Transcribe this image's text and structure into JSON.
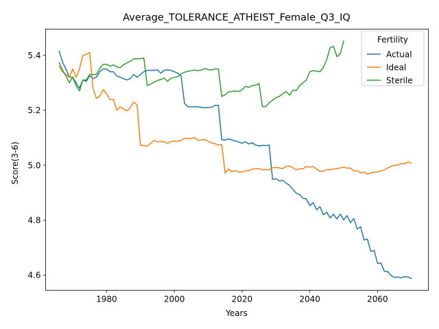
{
  "chart_data": {
    "type": "line",
    "title": "Average_TOLERANCE_ATHEIST_Female_Q3_IQ",
    "xlabel": "Years",
    "ylabel": "Score(3-6)",
    "xlim": [
      1962,
      2075
    ],
    "ylim": [
      4.545,
      5.495
    ],
    "xticks": [
      1980,
      2000,
      2020,
      2040,
      2060
    ],
    "yticks": [
      4.6,
      4.8,
      5.0,
      5.2,
      5.4
    ],
    "xtick_labels": [
      "1980",
      "2000",
      "2020",
      "2040",
      "2060"
    ],
    "ytick_labels": [
      "4.6",
      "4.8",
      "5.0",
      "5.2",
      "5.4"
    ],
    "grid": false,
    "legend": {
      "title": "Fertility",
      "placement": "top-right"
    },
    "series": [
      {
        "name": "Actual",
        "color": "#1f77b4",
        "x": [
          1966,
          1967,
          1968,
          1969,
          1970,
          1971,
          1972,
          1973,
          1974,
          1975,
          1976,
          1977,
          1978,
          1979,
          1980,
          1981,
          1982,
          1983,
          1984,
          1985,
          1986,
          1987,
          1988,
          1989,
          1990,
          1991,
          1992,
          1993,
          1994,
          1995,
          1996,
          1997,
          1998,
          1999,
          2000,
          2001,
          2002,
          2003,
          2004,
          2005,
          2006,
          2007,
          2008,
          2009,
          2010,
          2011,
          2012,
          2013,
          2014,
          2015,
          2016,
          2017,
          2018,
          2019,
          2020,
          2021,
          2022,
          2023,
          2024,
          2025,
          2026,
          2027,
          2028,
          2029,
          2030,
          2031,
          2032,
          2033,
          2034,
          2035,
          2036,
          2037,
          2038,
          2039,
          2040,
          2041,
          2042,
          2043,
          2044,
          2045,
          2046,
          2047,
          2048,
          2049,
          2050,
          2051,
          2052,
          2053,
          2054,
          2055,
          2056,
          2057,
          2058,
          2059,
          2060,
          2061,
          2062,
          2063,
          2064,
          2065,
          2066,
          2067,
          2068,
          2069,
          2070
        ],
        "values": [
          5.415,
          5.375,
          5.35,
          5.32,
          5.32,
          5.3,
          5.28,
          5.31,
          5.305,
          5.325,
          5.315,
          5.32,
          5.34,
          5.35,
          5.35,
          5.34,
          5.34,
          5.325,
          5.32,
          5.315,
          5.31,
          5.315,
          5.33,
          5.32,
          5.33,
          5.34,
          5.345,
          5.345,
          5.345,
          5.347,
          5.335,
          5.345,
          5.347,
          5.345,
          5.34,
          5.335,
          5.325,
          5.225,
          5.213,
          5.212,
          5.213,
          5.212,
          5.21,
          5.209,
          5.21,
          5.211,
          5.218,
          5.218,
          5.093,
          5.091,
          5.096,
          5.092,
          5.088,
          5.085,
          5.08,
          5.085,
          5.077,
          5.082,
          5.073,
          5.07,
          5.072,
          5.071,
          5.073,
          4.948,
          4.951,
          4.943,
          4.945,
          4.935,
          4.927,
          4.912,
          4.898,
          4.893,
          4.88,
          4.877,
          4.853,
          4.864,
          4.838,
          4.849,
          4.82,
          4.829,
          4.808,
          4.822,
          4.804,
          4.822,
          4.801,
          4.817,
          4.791,
          4.806,
          4.768,
          4.776,
          4.728,
          4.731,
          4.686,
          4.69,
          4.643,
          4.644,
          4.614,
          4.613,
          4.598,
          4.592,
          4.593,
          4.59,
          4.595,
          4.593,
          4.588
        ]
      },
      {
        "name": "Ideal",
        "color": "#ff7f0e",
        "x": [
          1966,
          1967,
          1968,
          1969,
          1970,
          1971,
          1972,
          1973,
          1974,
          1975,
          1976,
          1977,
          1978,
          1979,
          1980,
          1981,
          1982,
          1983,
          1984,
          1985,
          1986,
          1987,
          1988,
          1989,
          1990,
          1991,
          1992,
          1993,
          1994,
          1995,
          1996,
          1997,
          1998,
          1999,
          2000,
          2001,
          2002,
          2003,
          2004,
          2005,
          2006,
          2007,
          2008,
          2009,
          2010,
          2011,
          2012,
          2013,
          2014,
          2015,
          2016,
          2017,
          2018,
          2019,
          2020,
          2021,
          2022,
          2023,
          2024,
          2025,
          2026,
          2027,
          2028,
          2029,
          2030,
          2031,
          2032,
          2033,
          2034,
          2035,
          2036,
          2037,
          2038,
          2039,
          2040,
          2041,
          2042,
          2043,
          2044,
          2045,
          2046,
          2047,
          2048,
          2049,
          2050,
          2051,
          2052,
          2053,
          2054,
          2055,
          2056,
          2057,
          2058,
          2059,
          2060,
          2061,
          2062,
          2063,
          2064,
          2065,
          2066,
          2067,
          2068,
          2069,
          2070
        ],
        "values": [
          5.36,
          5.34,
          5.33,
          5.32,
          5.35,
          5.32,
          5.35,
          5.4,
          5.403,
          5.41,
          5.28,
          5.243,
          5.252,
          5.275,
          5.26,
          5.238,
          5.24,
          5.2,
          5.212,
          5.205,
          5.197,
          5.21,
          5.23,
          5.22,
          5.072,
          5.071,
          5.069,
          5.08,
          5.09,
          5.085,
          5.085,
          5.086,
          5.079,
          5.086,
          5.088,
          5.087,
          5.09,
          5.098,
          5.097,
          5.098,
          5.1,
          5.09,
          5.092,
          5.093,
          5.087,
          5.081,
          5.078,
          5.074,
          5.075,
          4.971,
          4.986,
          4.977,
          4.98,
          4.975,
          4.975,
          4.98,
          4.98,
          4.986,
          4.987,
          4.988,
          4.983,
          4.984,
          4.982,
          4.991,
          4.992,
          4.99,
          4.988,
          4.995,
          4.998,
          4.99,
          4.983,
          4.987,
          4.987,
          4.995,
          4.993,
          4.995,
          4.986,
          4.977,
          4.979,
          4.984,
          4.983,
          4.986,
          4.988,
          4.99,
          4.993,
          4.989,
          4.99,
          4.979,
          4.98,
          4.972,
          4.975,
          4.967,
          4.972,
          4.975,
          4.975,
          4.979,
          4.983,
          4.99,
          4.996,
          5.0,
          5.0,
          5.006,
          5.005,
          5.012,
          5.008
        ]
      },
      {
        "name": "Sterile",
        "color": "#2ca02c",
        "x": [
          1966,
          1967,
          1968,
          1969,
          1970,
          1971,
          1972,
          1973,
          1974,
          1975,
          1976,
          1977,
          1978,
          1979,
          1980,
          1981,
          1982,
          1983,
          1984,
          1985,
          1986,
          1987,
          1988,
          1989,
          1990,
          1991,
          1992,
          1993,
          1994,
          1995,
          1996,
          1997,
          1998,
          1999,
          2000,
          2001,
          2002,
          2003,
          2004,
          2005,
          2006,
          2007,
          2008,
          2009,
          2010,
          2011,
          2012,
          2013,
          2014,
          2015,
          2016,
          2017,
          2018,
          2019,
          2020,
          2021,
          2022,
          2023,
          2024,
          2025,
          2026,
          2027,
          2028,
          2029,
          2030,
          2031,
          2032,
          2033,
          2034,
          2035,
          2036,
          2037,
          2038,
          2039,
          2040,
          2041,
          2042,
          2043,
          2044,
          2045,
          2046,
          2047,
          2048,
          2049,
          2050
        ],
        "values": [
          5.373,
          5.345,
          5.325,
          5.3,
          5.32,
          5.29,
          5.27,
          5.31,
          5.31,
          5.33,
          5.33,
          5.33,
          5.352,
          5.367,
          5.367,
          5.36,
          5.365,
          5.358,
          5.355,
          5.365,
          5.372,
          5.378,
          5.387,
          5.387,
          5.387,
          5.39,
          5.29,
          5.295,
          5.302,
          5.308,
          5.312,
          5.317,
          5.305,
          5.316,
          5.32,
          5.322,
          5.332,
          5.338,
          5.342,
          5.344,
          5.346,
          5.344,
          5.346,
          5.352,
          5.347,
          5.347,
          5.35,
          5.35,
          5.25,
          5.256,
          5.267,
          5.268,
          5.27,
          5.268,
          5.274,
          5.287,
          5.283,
          5.29,
          5.291,
          5.297,
          5.213,
          5.213,
          5.228,
          5.236,
          5.246,
          5.25,
          5.26,
          5.268,
          5.255,
          5.273,
          5.272,
          5.289,
          5.3,
          5.31,
          5.34,
          5.344,
          5.342,
          5.34,
          5.355,
          5.385,
          5.428,
          5.432,
          5.395,
          5.405,
          5.452
        ]
      }
    ]
  }
}
